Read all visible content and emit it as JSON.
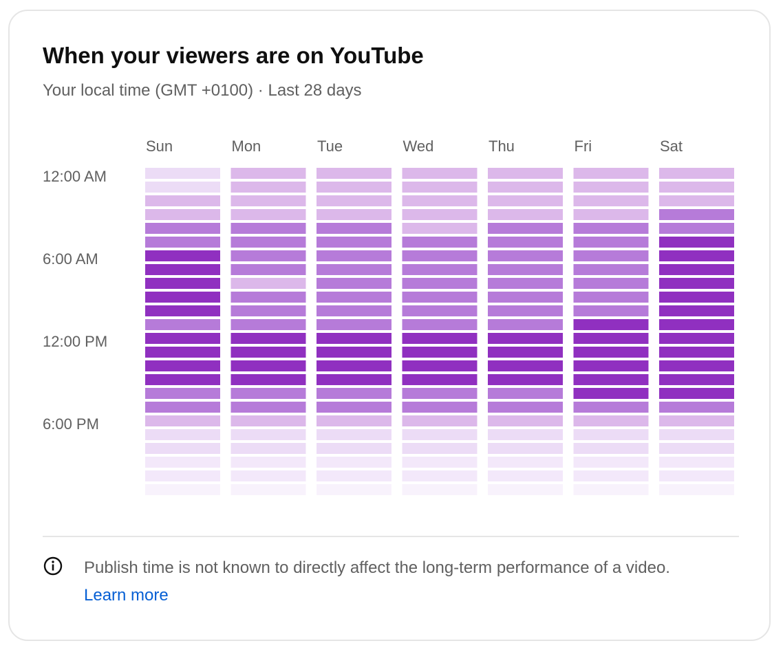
{
  "card": {
    "title": "When your viewers are on YouTube",
    "subtitle": "Your local time (GMT +0100) · Last 28 days"
  },
  "footer": {
    "info_icon": "info-circle-icon",
    "note": "Publish time is not known to directly affect the long-term performance of a video.",
    "learn_more": "Learn more"
  },
  "chart_data": {
    "type": "heatmap",
    "title": "When your viewers are on YouTube",
    "x_categories": [
      "Sun",
      "Mon",
      "Tue",
      "Wed",
      "Thu",
      "Fri",
      "Sat"
    ],
    "y_tick_labels": [
      "12:00 AM",
      "6:00 AM",
      "12:00 PM",
      "6:00 PM"
    ],
    "y_tick_rows": [
      0,
      6,
      12,
      18
    ],
    "rows_per_day": 24,
    "intensity_scale": "0 = lowest viewer activity, 5 = highest",
    "colors": [
      "#f8f2fc",
      "#f3e8fa",
      "#ecdcf6",
      "#dcb8ea",
      "#b67bd9",
      "#9030c0"
    ],
    "values": [
      [
        2,
        3,
        3,
        3,
        3,
        3,
        3
      ],
      [
        2,
        3,
        3,
        3,
        3,
        3,
        3
      ],
      [
        3,
        3,
        3,
        3,
        3,
        3,
        3
      ],
      [
        3,
        3,
        3,
        3,
        3,
        3,
        4
      ],
      [
        4,
        4,
        4,
        3,
        4,
        4,
        4
      ],
      [
        4,
        4,
        4,
        4,
        4,
        4,
        5
      ],
      [
        5,
        4,
        4,
        4,
        4,
        4,
        5
      ],
      [
        5,
        4,
        4,
        4,
        4,
        4,
        5
      ],
      [
        5,
        3,
        4,
        4,
        4,
        4,
        5
      ],
      [
        5,
        4,
        4,
        4,
        4,
        4,
        5
      ],
      [
        5,
        4,
        4,
        4,
        4,
        4,
        5
      ],
      [
        4,
        4,
        4,
        4,
        4,
        5,
        5
      ],
      [
        5,
        5,
        5,
        5,
        5,
        5,
        5
      ],
      [
        5,
        5,
        5,
        5,
        5,
        5,
        5
      ],
      [
        5,
        5,
        5,
        5,
        5,
        5,
        5
      ],
      [
        5,
        5,
        5,
        5,
        5,
        5,
        5
      ],
      [
        4,
        4,
        4,
        4,
        4,
        5,
        5
      ],
      [
        4,
        4,
        4,
        4,
        4,
        4,
        4
      ],
      [
        3,
        3,
        3,
        3,
        3,
        3,
        3
      ],
      [
        2,
        2,
        2,
        2,
        2,
        2,
        2
      ],
      [
        2,
        2,
        2,
        2,
        2,
        2,
        2
      ],
      [
        1,
        1,
        1,
        1,
        1,
        1,
        1
      ],
      [
        1,
        1,
        1,
        1,
        1,
        1,
        1
      ],
      [
        0,
        0,
        0,
        0,
        0,
        0,
        0
      ]
    ]
  }
}
